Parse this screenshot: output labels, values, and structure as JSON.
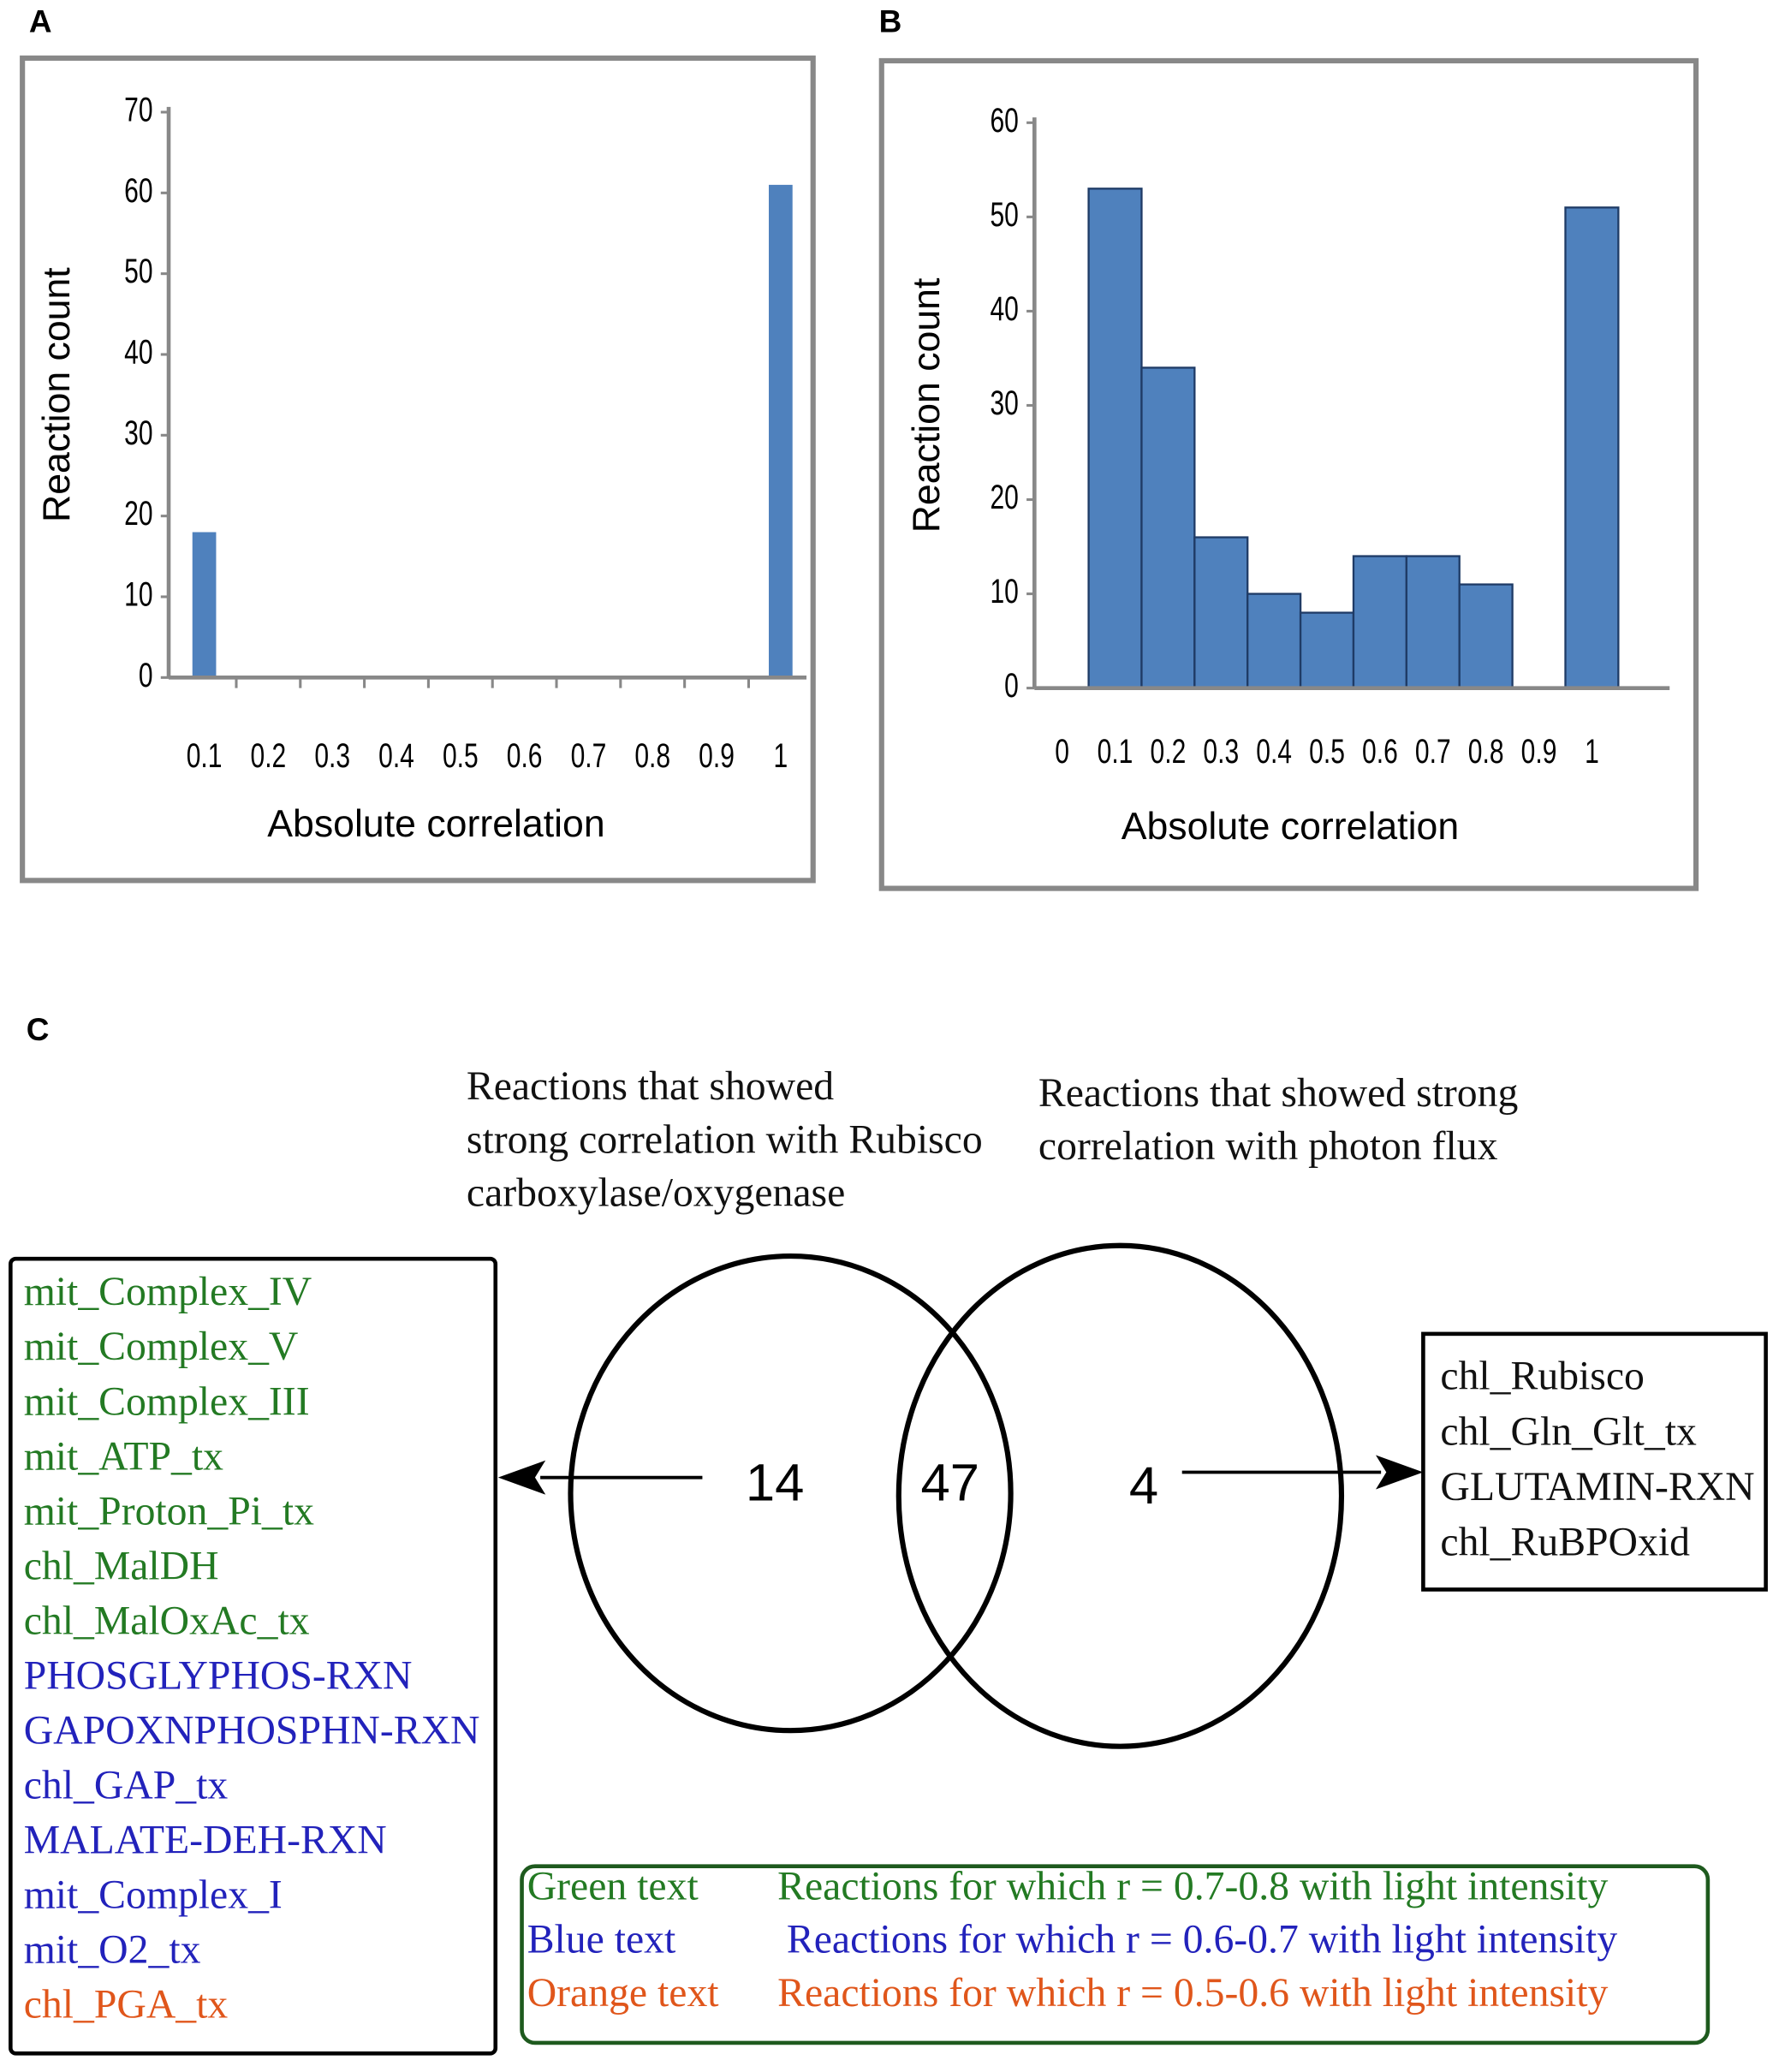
{
  "chart_data": [
    {
      "type": "bar",
      "panel": "A",
      "xlabel": "Absolute correlation",
      "ylabel": "Reaction count",
      "color": "#4f81bd",
      "categories": [
        "0.1",
        "0.2",
        "0.3",
        "0.4",
        "0.5",
        "0.6",
        "0.7",
        "0.8",
        "0.9",
        "1"
      ],
      "values": [
        18,
        0,
        0,
        0,
        0,
        0,
        0,
        0,
        0,
        61
      ],
      "ylim": [
        0,
        70
      ],
      "yticks": [
        0,
        10,
        20,
        30,
        40,
        50,
        60,
        70
      ]
    },
    {
      "type": "bar",
      "panel": "B",
      "xlabel": "Absolute correlation",
      "ylabel": "Reaction count",
      "color": "#4f81bd",
      "categories": [
        "0",
        "0.1",
        "0.2",
        "0.3",
        "0.4",
        "0.5",
        "0.6",
        "0.7",
        "0.8",
        "0.9",
        "1"
      ],
      "values": [
        0,
        53,
        34,
        16,
        10,
        8,
        14,
        14,
        11,
        0,
        51
      ],
      "ylim": [
        0,
        60
      ],
      "yticks": [
        0,
        10,
        20,
        30,
        40,
        50,
        60
      ]
    }
  ],
  "panel_c": {
    "panel": "C",
    "left_title": [
      "Reactions that showed",
      "strong correlation with Rubisco",
      "carboxylase/oxygenase"
    ],
    "right_title": [
      "Reactions that showed strong",
      "correlation with photon flux"
    ],
    "counts": {
      "left": 14,
      "both": 47,
      "right": 4
    },
    "left_list": [
      {
        "text": "mit_Complex_IV",
        "color": "#237a23"
      },
      {
        "text": "mit_Complex_V",
        "color": "#237a23"
      },
      {
        "text": "mit_Complex_III",
        "color": "#237a23"
      },
      {
        "text": "mit_ATP_tx",
        "color": "#237a23"
      },
      {
        "text": "mit_Proton_Pi_tx",
        "color": "#237a23"
      },
      {
        "text": "chl_MalDH",
        "color": "#237a23"
      },
      {
        "text": "chl_MalOxAc_tx",
        "color": "#237a23"
      },
      {
        "text": "PHOSGLYPHOS-RXN",
        "color": "#2222bb"
      },
      {
        "text": "GAPOXNPHOSPHN-RXN",
        "color": "#2222bb"
      },
      {
        "text": "chl_GAP_tx",
        "color": "#2222bb"
      },
      {
        "text": "MALATE-DEH-RXN",
        "color": "#2222bb"
      },
      {
        "text": "mit_Complex_I",
        "color": "#2222bb"
      },
      {
        "text": "mit_O2_tx",
        "color": "#2222bb"
      },
      {
        "text": "chl_PGA_tx",
        "color": "#e0561b"
      }
    ],
    "right_list": [
      "chl_Rubisco",
      "chl_Gln_Glt_tx",
      "GLUTAMIN-RXN",
      "chl_RuBPOxid"
    ],
    "key": [
      {
        "label": "Green text",
        "description": "Reactions for which r = 0.7-0.8 with light intensity",
        "color": "#237a23"
      },
      {
        "label": "Blue text",
        "description": "Reactions for which r = 0.6-0.7 with light intensity",
        "color": "#2222bb"
      },
      {
        "label": "Orange text",
        "description": "Reactions for which r = 0.5-0.6 with light intensity",
        "color": "#e0561b"
      }
    ]
  }
}
